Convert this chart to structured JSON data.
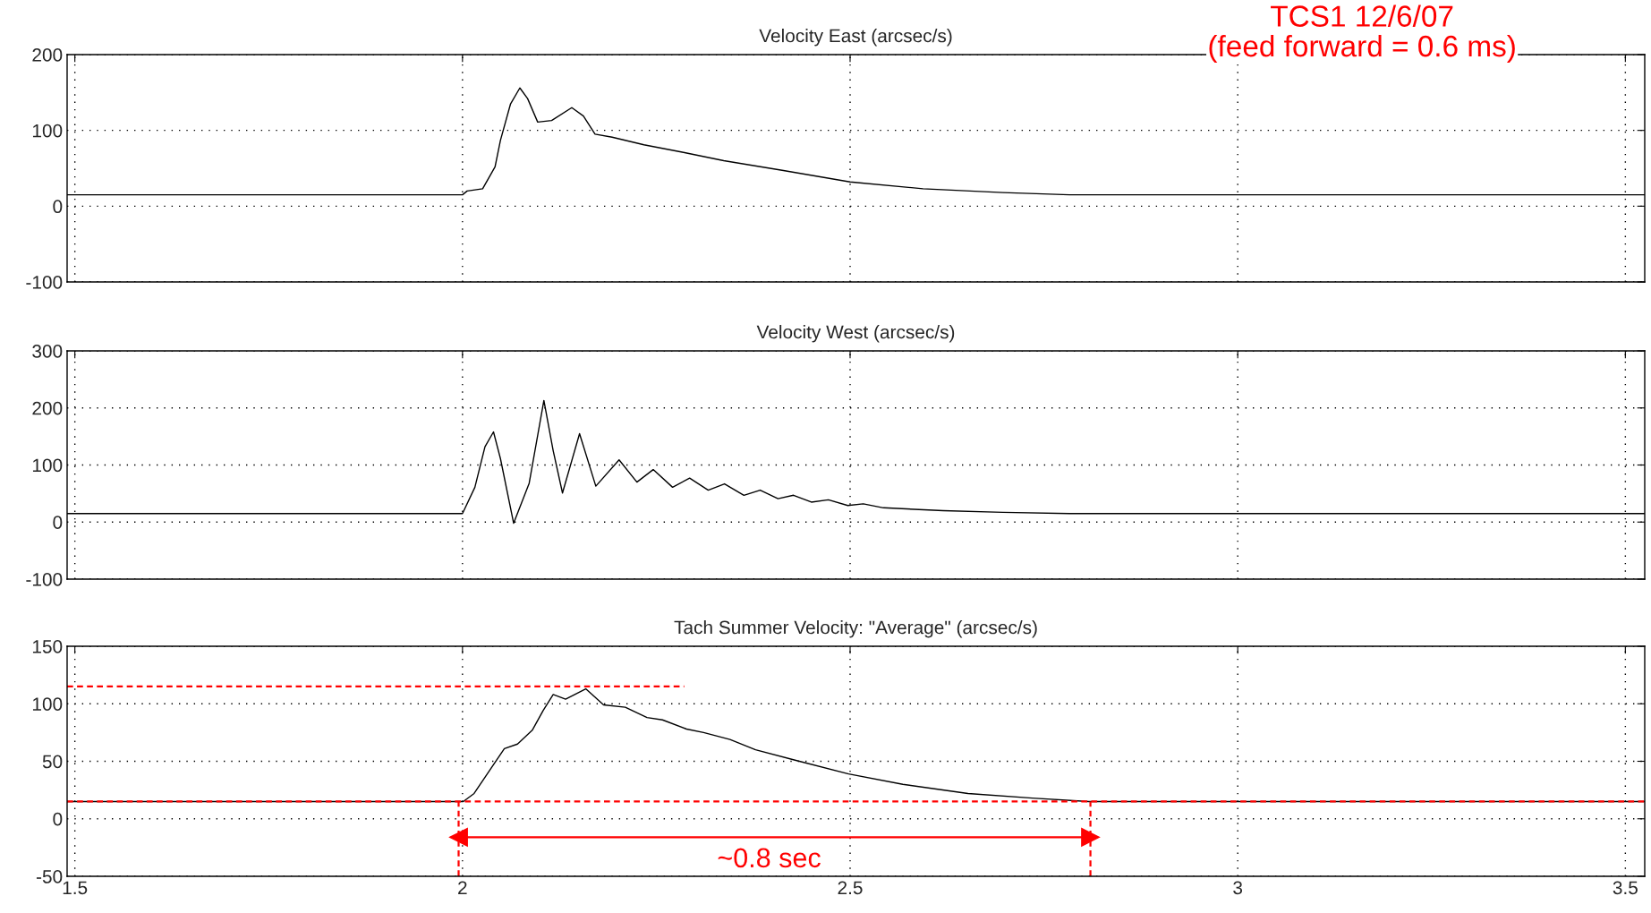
{
  "chart_data": [
    {
      "type": "line",
      "title": "Velocity East (arcsec/s)",
      "xlim": [
        1.49,
        3.525
      ],
      "xticks": [
        1.5,
        2,
        2.5,
        3,
        3.5
      ],
      "ylim": [
        -100,
        200
      ],
      "yticks": [
        -100,
        0,
        100,
        200
      ],
      "grid": true,
      "tick_labels": "y",
      "annotations": [
        "TCS1 12/6/07\n(feed forward = 0.6 ms)"
      ],
      "series": [
        {
          "color": "#000000",
          "x": [
            1.49,
            2.0,
            2.006,
            2.026,
            2.042,
            2.049,
            2.062,
            2.074,
            2.084,
            2.097,
            2.115,
            2.141,
            2.156,
            2.171,
            2.193,
            2.234,
            2.285,
            2.337,
            2.414,
            2.5,
            2.594,
            2.697,
            2.783,
            3.525
          ],
          "values": [
            15,
            15,
            20,
            23,
            52,
            87,
            135,
            156,
            142,
            111,
            113,
            130,
            119,
            95,
            91,
            81,
            71,
            60,
            47,
            32,
            23,
            18,
            15,
            15
          ]
        }
      ]
    },
    {
      "type": "line",
      "title": "Velocity West (arcsec/s)",
      "xlim": [
        1.49,
        3.525
      ],
      "xticks": [
        1.5,
        2,
        2.5,
        3,
        3.5
      ],
      "ylim": [
        -100,
        300
      ],
      "yticks": [
        -100,
        0,
        100,
        200,
        300
      ],
      "grid": true,
      "tick_labels": "y",
      "series": [
        {
          "color": "#000000",
          "x": [
            1.49,
            2.0,
            2.016,
            2.029,
            2.04,
            2.049,
            2.066,
            2.086,
            2.105,
            2.117,
            2.129,
            2.151,
            2.172,
            2.202,
            2.225,
            2.246,
            2.271,
            2.293,
            2.317,
            2.338,
            2.363,
            2.384,
            2.407,
            2.427,
            2.45,
            2.472,
            2.497,
            2.517,
            2.543,
            2.62,
            2.697,
            2.783,
            3.525
          ],
          "values": [
            15,
            15,
            61,
            132,
            158,
            111,
            -2,
            68,
            213,
            125,
            51,
            155,
            63,
            109,
            70,
            92,
            61,
            77,
            56,
            67,
            47,
            56,
            41,
            47,
            35,
            39,
            29,
            32,
            25,
            20,
            17,
            15,
            15
          ]
        }
      ]
    },
    {
      "type": "line",
      "title": "Tach Summer Velocity: \"Average\" (arcsec/s)",
      "xlim": [
        1.49,
        3.525
      ],
      "xticks": [
        1.5,
        2,
        2.5,
        3,
        3.5
      ],
      "ylim": [
        -50,
        150
      ],
      "yticks": [
        -50,
        0,
        50,
        100,
        150
      ],
      "grid": true,
      "ref_lines": [
        {
          "axis": "y",
          "value": 15,
          "color": "#ff0000",
          "line_style": "dashed"
        }
      ],
      "annotations": [
        "~0.8 sec"
      ],
      "series": [
        {
          "color": "#000000",
          "x": [
            1.49,
            2.001,
            2.015,
            2.037,
            2.054,
            2.071,
            2.09,
            2.104,
            2.117,
            2.133,
            2.159,
            2.182,
            2.21,
            2.238,
            2.258,
            2.289,
            2.311,
            2.345,
            2.378,
            2.429,
            2.498,
            2.568,
            2.652,
            2.735,
            2.808,
            3.525
          ],
          "values": [
            15,
            15,
            22,
            44,
            61,
            65,
            77,
            94,
            108,
            104,
            113,
            99,
            97,
            88,
            86,
            78,
            75,
            69,
            60,
            51,
            39,
            30,
            22,
            18,
            15,
            15
          ]
        },
        {
          "color": "#ff0000",
          "line_style": "dashed",
          "x": [
            1.49,
            2.286
          ],
          "values": [
            115,
            115
          ]
        },
        {
          "color": "#ff0000",
          "line_style": "dashed",
          "x": [
            1.995,
            1.995
          ],
          "values": [
            -50,
            15
          ]
        },
        {
          "color": "#ff0000",
          "line_style": "dashed",
          "x": [
            2.81,
            2.81
          ],
          "values": [
            -50,
            15
          ]
        },
        {
          "color": "#ff0000",
          "line_style": "solid",
          "marker": "triangle",
          "x": [
            1.995,
            2.81
          ],
          "values": [
            -16,
            -16
          ]
        }
      ]
    }
  ]
}
